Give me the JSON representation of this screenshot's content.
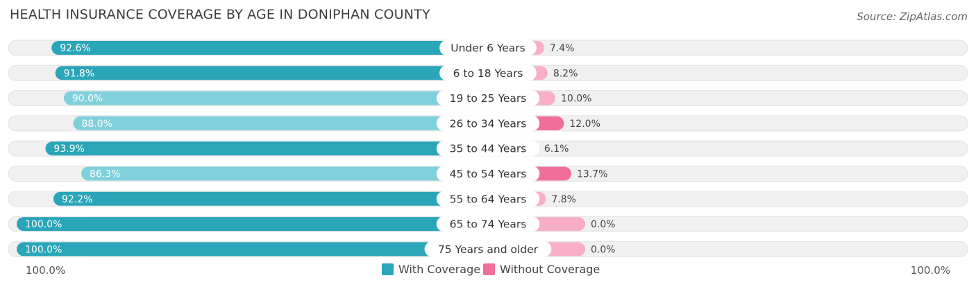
{
  "header": {
    "title": "HEALTH INSURANCE COVERAGE BY AGE IN DONIPHAN COUNTY",
    "source": "Source: ZipAtlas.com"
  },
  "legend": {
    "with_label": "With Coverage",
    "without_label": "Without Coverage"
  },
  "axis": {
    "left_label": "100.0%",
    "right_label": "100.0%"
  },
  "colors": {
    "with_dark": "#2aa6b8",
    "with_light": "#7fd0db",
    "without_dark": "#f06e99",
    "without_light": "#f7aec6",
    "track": "#f0f0f0"
  },
  "chart_data": {
    "type": "bar",
    "orientation": "horizontal-diverging",
    "title": "HEALTH INSURANCE COVERAGE BY AGE IN DONIPHAN COUNTY",
    "categories": [
      "Under 6 Years",
      "6 to 18 Years",
      "19 to 25 Years",
      "26 to 34 Years",
      "35 to 44 Years",
      "45 to 54 Years",
      "55 to 64 Years",
      "65 to 74 Years",
      "75 Years and older"
    ],
    "series": [
      {
        "name": "With Coverage",
        "values": [
          92.6,
          91.8,
          90.0,
          88.0,
          93.9,
          86.3,
          92.2,
          100.0,
          100.0
        ],
        "labels": [
          "92.6%",
          "91.8%",
          "90.0%",
          "88.0%",
          "93.9%",
          "86.3%",
          "92.2%",
          "100.0%",
          "100.0%"
        ]
      },
      {
        "name": "Without Coverage",
        "values": [
          7.4,
          8.2,
          10.0,
          12.0,
          6.1,
          13.7,
          7.8,
          0.0,
          0.0
        ],
        "labels": [
          "7.4%",
          "8.2%",
          "10.0%",
          "12.0%",
          "6.1%",
          "13.7%",
          "7.8%",
          "0.0%",
          "0.0%"
        ]
      }
    ],
    "xlim": [
      -100,
      100
    ],
    "legend_position": "bottom-center"
  }
}
